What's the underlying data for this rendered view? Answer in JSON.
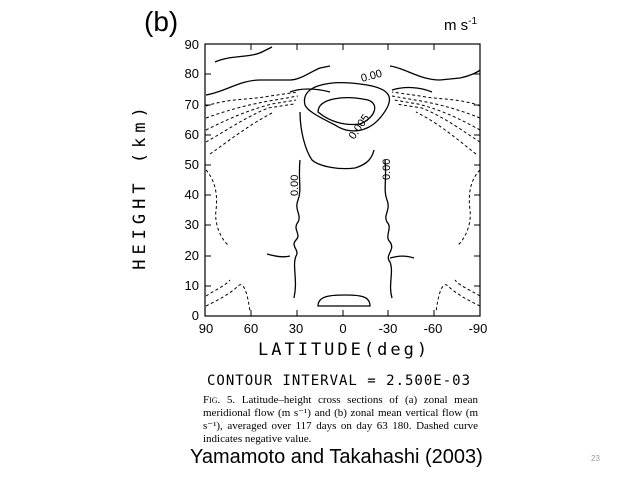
{
  "panel_label": "(b)",
  "units": {
    "base": "m s",
    "exp": "-1"
  },
  "axes": {
    "ylabel": "HEIGHT (km)",
    "xlabel": "LATITUDE(deg)",
    "yticks": [
      "0",
      "10",
      "20",
      "30",
      "40",
      "50",
      "60",
      "70",
      "80",
      "90"
    ],
    "xticks": [
      "90",
      "60",
      "30",
      "0",
      "-30",
      "-60",
      "-90"
    ]
  },
  "contour_labels": [
    "0.00",
    "0.00",
    "0.005",
    "0.00"
  ],
  "contour_interval": "CONTOUR INTERVAL = 2.500E-03",
  "caption": {
    "fig": "Fig. 5.",
    "text": " Latitude–height cross sections of (a) zonal mean meridional flow (m s⁻¹) and (b) zonal mean vertical flow (m s⁻¹), averaged over 117 days on day 63 180. Dashed curve indicates negative value."
  },
  "citation": "Yamamoto and Takahashi (2003)",
  "slide_number": "23"
}
